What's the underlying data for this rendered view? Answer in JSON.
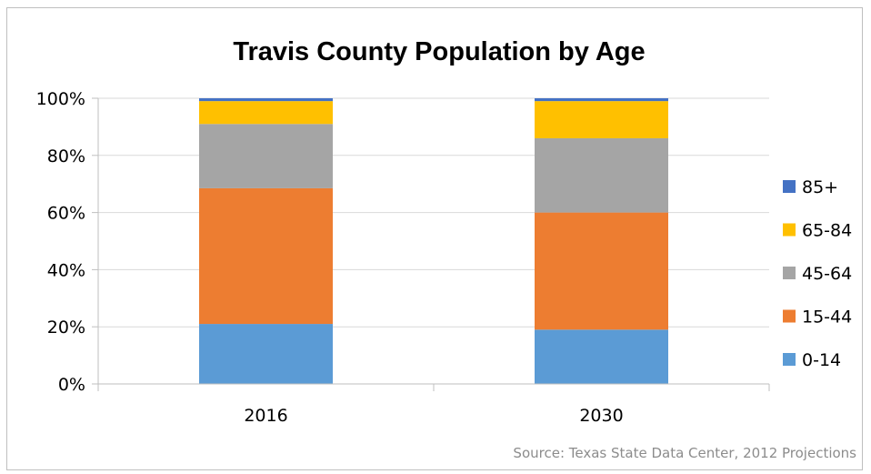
{
  "chart_data": {
    "type": "bar",
    "stacked": true,
    "percent_stacked": true,
    "title": "Travis County Population by Age",
    "categories": [
      "2016",
      "2030"
    ],
    "series": [
      {
        "name": "0-14",
        "color": "#5B9BD5",
        "values": [
          21,
          19
        ]
      },
      {
        "name": "15-44",
        "color": "#ED7D31",
        "values": [
          47.5,
          41
        ]
      },
      {
        "name": "45-64",
        "color": "#A5A5A5",
        "values": [
          22.5,
          26
        ]
      },
      {
        "name": "65-84",
        "color": "#FFC000",
        "values": [
          8,
          13
        ]
      },
      {
        "name": "85+",
        "color": "#4472C4",
        "values": [
          1,
          1
        ]
      }
    ],
    "ylim": [
      0,
      100
    ],
    "y_ticks": [
      "0%",
      "20%",
      "40%",
      "60%",
      "80%",
      "100%"
    ],
    "grid": true,
    "legend_position": "right",
    "source": "Source: Texas State Data Center, 2012 Projections"
  }
}
